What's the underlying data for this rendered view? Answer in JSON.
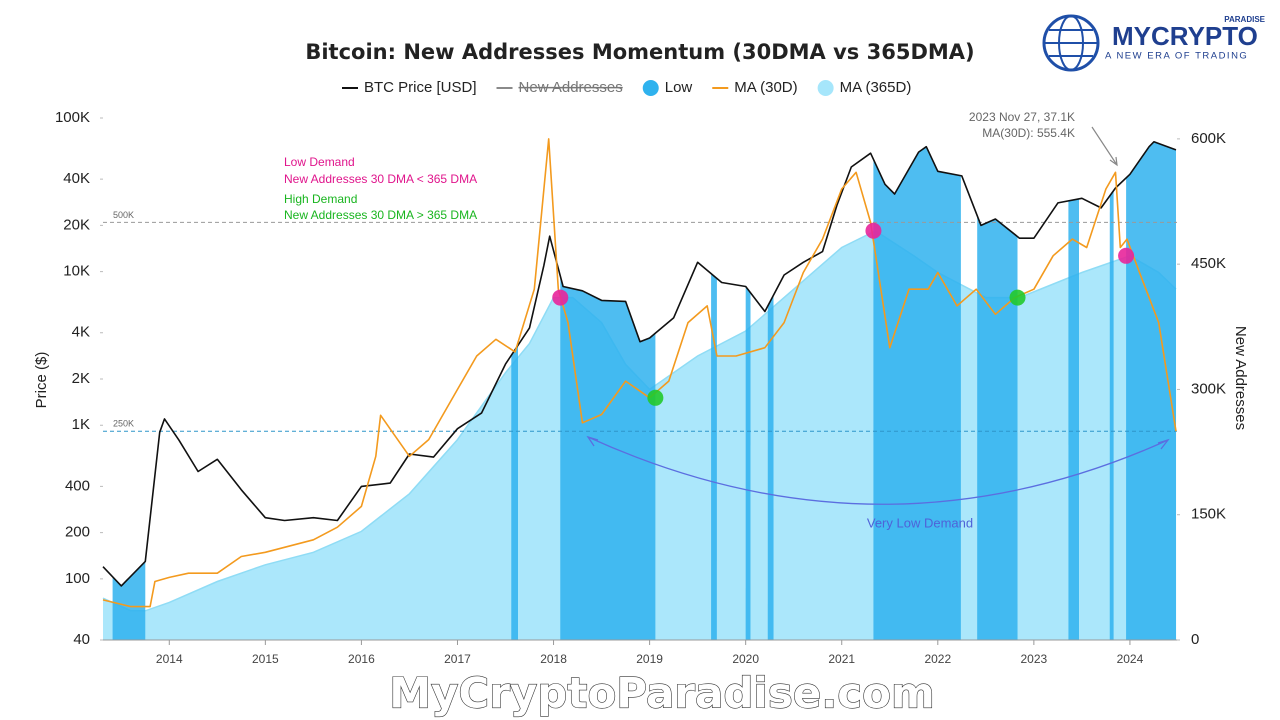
{
  "chart_data": {
    "type": "line",
    "title": "Bitcoin: New Addresses Momentum (30DMA vs 365DMA)",
    "y_label": "Price ($)",
    "y2_label": "New Addresses",
    "log_y": true,
    "xlim": [
      2013.31,
      2024.49
    ],
    "xticks": [
      2014,
      2015,
      2016,
      2017,
      2018,
      2019,
      2020,
      2021,
      2022,
      2023,
      2024
    ],
    "ylim": [
      40,
      100000
    ],
    "yticks": [
      40,
      100,
      200,
      400,
      {
        "value": 1000,
        "label": "1K"
      },
      {
        "value": 2000,
        "label": "2K"
      },
      {
        "value": 4000,
        "label": "4K"
      },
      {
        "value": 10000,
        "label": "10K"
      },
      {
        "value": 20000,
        "label": "20K"
      },
      {
        "value": 40000,
        "label": "40K"
      },
      {
        "value": 100000,
        "label": "100K"
      }
    ],
    "y2lim": [
      0,
      625000
    ],
    "y2ticks": [
      0,
      {
        "value": 150000,
        "label": "150K"
      },
      {
        "value": 300000,
        "label": "300K"
      },
      {
        "value": 450000,
        "label": "450K"
      },
      {
        "value": 600000,
        "label": "600K"
      }
    ],
    "series": [
      {
        "name": "BTC Price [USD]",
        "kind": "line",
        "color": "#111111",
        "x": [
          2013.31,
          2013.5,
          2013.75,
          2013.9,
          2013.95,
          2014.1,
          2014.3,
          2014.5,
          2014.75,
          2015.0,
          2015.2,
          2015.5,
          2015.75,
          2016.0,
          2016.3,
          2016.5,
          2016.75,
          2017.0,
          2017.25,
          2017.5,
          2017.75,
          2017.9,
          2017.96,
          2018.1,
          2018.3,
          2018.5,
          2018.75,
          2018.9,
          2019.0,
          2019.25,
          2019.5,
          2019.75,
          2020.0,
          2020.2,
          2020.4,
          2020.6,
          2020.8,
          2020.95,
          2021.1,
          2021.3,
          2021.45,
          2021.55,
          2021.8,
          2021.88,
          2022.0,
          2022.25,
          2022.45,
          2022.6,
          2022.85,
          2023.0,
          2023.25,
          2023.5,
          2023.7,
          2023.85,
          2024.0,
          2024.2,
          2024.25,
          2024.48
        ],
        "values": [
          120,
          90,
          130,
          900,
          1100,
          800,
          500,
          600,
          380,
          250,
          240,
          250,
          240,
          400,
          420,
          650,
          620,
          950,
          1200,
          2500,
          4300,
          11000,
          17000,
          8000,
          7500,
          6500,
          6400,
          3500,
          3700,
          5000,
          11500,
          8500,
          8000,
          5500,
          9500,
          11500,
          13500,
          27000,
          48000,
          59000,
          37000,
          32000,
          60000,
          65000,
          45000,
          42000,
          20000,
          22000,
          16500,
          16500,
          28000,
          30000,
          26000,
          35000,
          43000,
          65000,
          70000,
          62000
        ]
      },
      {
        "name": "New Addresses",
        "kind": "hidden",
        "color": "#8a8a8a",
        "x": [],
        "values": []
      },
      {
        "name": "Low",
        "kind": "periods",
        "color": "#2fb2ee",
        "periods": [
          [
            2013.41,
            2013.75
          ],
          [
            2017.56,
            2017.63
          ],
          [
            2018.07,
            2019.06
          ],
          [
            2019.64,
            2019.7
          ],
          [
            2020.0,
            2020.05
          ],
          [
            2020.23,
            2020.29
          ],
          [
            2021.33,
            2022.24
          ],
          [
            2022.41,
            2022.83
          ],
          [
            2023.36,
            2023.47
          ],
          [
            2023.79,
            2023.83
          ],
          [
            2023.96,
            2024.48
          ]
        ]
      },
      {
        "name": "MA (30D)",
        "kind": "line",
        "axis": "y2",
        "color": "#f39a1e",
        "x": [
          2013.31,
          2013.6,
          2013.8,
          2013.85,
          2014.0,
          2014.2,
          2014.5,
          2014.75,
          2015.0,
          2015.5,
          2015.75,
          2016.0,
          2016.15,
          2016.2,
          2016.5,
          2016.7,
          2017.0,
          2017.2,
          2017.4,
          2017.6,
          2017.8,
          2017.95,
          2018.05,
          2018.15,
          2018.3,
          2018.5,
          2018.75,
          2019.0,
          2019.2,
          2019.4,
          2019.6,
          2019.7,
          2019.9,
          2020.2,
          2020.4,
          2020.6,
          2020.8,
          2021.0,
          2021.15,
          2021.3,
          2021.5,
          2021.7,
          2021.9,
          2022.0,
          2022.2,
          2022.4,
          2022.6,
          2022.8,
          2023.0,
          2023.2,
          2023.4,
          2023.55,
          2023.75,
          2023.85,
          2023.9,
          2023.97,
          2024.1,
          2024.3,
          2024.48
        ],
        "values": [
          48000,
          40000,
          40000,
          70000,
          75000,
          80000,
          80000,
          100000,
          105000,
          120000,
          135000,
          160000,
          220000,
          269000,
          220000,
          240000,
          300000,
          340000,
          360000,
          345000,
          420000,
          600000,
          420000,
          380000,
          260000,
          270000,
          310000,
          290000,
          310000,
          380000,
          400000,
          340000,
          340000,
          350000,
          380000,
          440000,
          480000,
          540000,
          560000,
          500000,
          350000,
          420000,
          420000,
          440000,
          400000,
          420000,
          390000,
          410000,
          420000,
          460000,
          480000,
          470000,
          540000,
          560000,
          470000,
          480000,
          440000,
          380000,
          250000
        ]
      },
      {
        "name": "MA (365D)",
        "kind": "area",
        "axis": "y2",
        "color": "#a6e6fb",
        "x": [
          2013.31,
          2013.6,
          2013.75,
          2014.0,
          2014.5,
          2015.0,
          2015.5,
          2016.0,
          2016.5,
          2017.0,
          2017.5,
          2017.75,
          2018.0,
          2018.2,
          2018.5,
          2018.75,
          2019.0,
          2019.5,
          2020.0,
          2020.5,
          2021.0,
          2021.35,
          2021.75,
          2022.0,
          2022.5,
          2022.85,
          2023.5,
          2024.0,
          2024.3,
          2024.48
        ],
        "values": [
          50000,
          35000,
          35000,
          45000,
          70000,
          90000,
          105000,
          130000,
          175000,
          240000,
          320000,
          355000,
          410000,
          410000,
          380000,
          330000,
          300000,
          340000,
          370000,
          420000,
          470000,
          490000,
          460000,
          440000,
          410000,
          410000,
          440000,
          460000,
          440000,
          420000
        ]
      }
    ],
    "low_demand_points": {
      "color": "#e8259a",
      "x": [
        2018.07,
        2021.33,
        2023.96
      ],
      "values": [
        410000,
        490000,
        460000
      ]
    },
    "high_demand_points": {
      "color": "#22c92b",
      "x": [
        2019.06,
        2022.83
      ],
      "values": [
        290000,
        410000
      ]
    },
    "ref_lines": [
      {
        "value": 500000,
        "label": "500K"
      },
      {
        "value": 250000,
        "label": "250K"
      }
    ],
    "annotations": {
      "low_demand": "Low Demand",
      "low_rule": "New Addresses 30 DMA < 365 DMA",
      "high_demand": "High Demand",
      "high_rule": "New Addresses 30 DMA > 365 DMA",
      "callout_date": "2023 Nov 27, 37.1K",
      "callout_ma": "MA(30D): 555.4K",
      "very_low": "Very Low Demand"
    }
  },
  "branding": {
    "logo": "MYCRYPTO",
    "logo_sup": "PARADISE",
    "tagline": "A NEW ERA OF TRADING",
    "watermark": "MyCryptoParadise.com"
  }
}
